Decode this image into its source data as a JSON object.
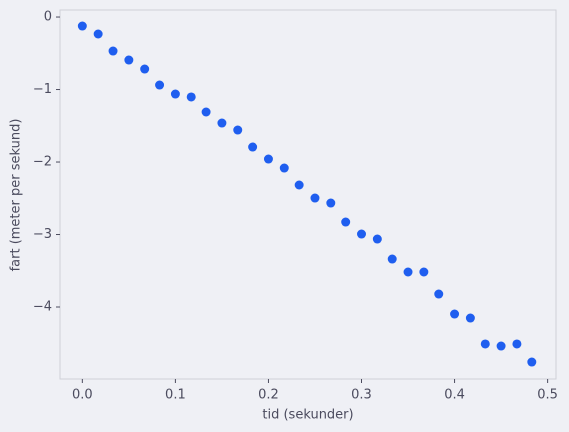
{
  "chart_data": {
    "type": "scatter",
    "xlabel": "tid (sekunder)",
    "ylabel": "fart (meter per sekund)",
    "color": "#1f5eef",
    "x": [
      0,
      0.017,
      0.033,
      0.05,
      0.067,
      0.083,
      0.1,
      0.117,
      0.133,
      0.15,
      0.167,
      0.183,
      0.2,
      0.217,
      0.233,
      0.25,
      0.267,
      0.283,
      0.3,
      0.317,
      0.333,
      0.35,
      0.367,
      0.383,
      0.4,
      0.417,
      0.433,
      0.45,
      0.467,
      0.483
    ],
    "values": [
      -0.124,
      -0.234,
      -0.469,
      -0.593,
      -0.717,
      -0.938,
      -1.062,
      -1.103,
      -1.31,
      -1.462,
      -1.559,
      -1.793,
      -1.959,
      -2.083,
      -2.317,
      -2.497,
      -2.566,
      -2.828,
      -2.993,
      -3.062,
      -3.338,
      -3.517,
      -3.517,
      -3.821,
      -4.097,
      -4.152,
      -4.51,
      -4.538,
      -4.51,
      -4.759
    ],
    "xlim": [
      -0.024,
      0.509
    ],
    "ylim": [
      -4.993,
      0.097
    ],
    "xticks": [
      {
        "value": 0,
        "label": "0.0"
      },
      0.1,
      0.2,
      0.3,
      0.4,
      0.5
    ],
    "yticks": [
      0,
      {
        "value": -1,
        "label": "−1"
      },
      {
        "value": -2,
        "label": "−2"
      },
      {
        "value": -3,
        "label": "−3"
      },
      {
        "value": -4,
        "label": "−4"
      }
    ]
  }
}
